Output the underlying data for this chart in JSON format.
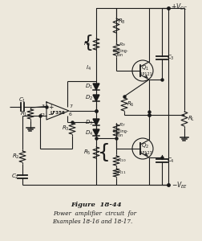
{
  "title": "Figure  18-44",
  "caption1": "Power  amplifier  circuit  for",
  "caption2": "Examples 18-16 and 18-17.",
  "bg_color": "#ede8dc",
  "line_color": "#1a1a1a",
  "text_color": "#1a1a1a",
  "figsize": [
    2.53,
    3.0
  ],
  "dpi": 100
}
